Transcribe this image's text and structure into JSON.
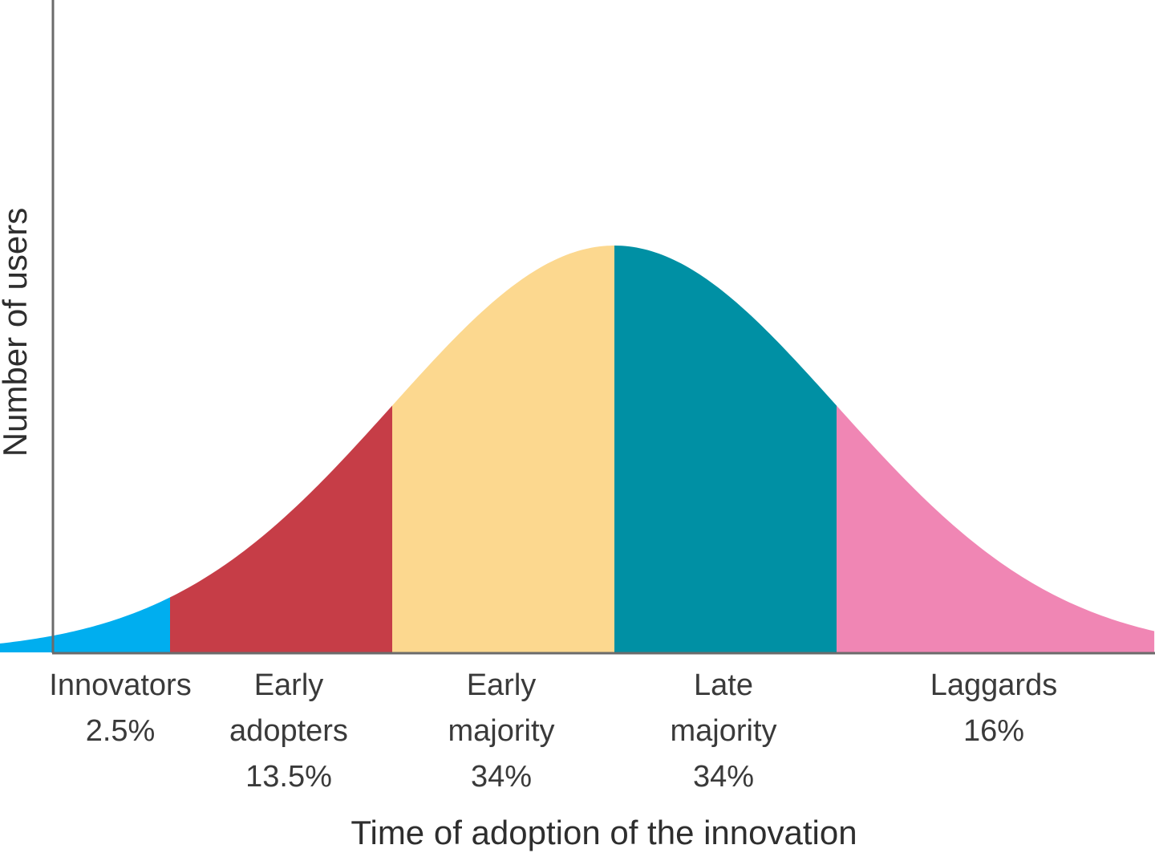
{
  "chart_data": {
    "type": "area",
    "title": "",
    "xlabel": "Time of adoption of the innovation",
    "ylabel": "Number of users",
    "distribution": "normal",
    "x_range_sd": [
      -2.9,
      2.43
    ],
    "grid": false,
    "legend": "none",
    "segments": [
      {
        "name": "Innovators",
        "percent": "2.5%",
        "value": 2.5,
        "from_sd": -2.9,
        "to_sd": -2.0,
        "color": "#00AEEF"
      },
      {
        "name": "Early adopters",
        "percent": "13.5%",
        "value": 13.5,
        "from_sd": -2.0,
        "to_sd": -1.0,
        "color": "#C63D47"
      },
      {
        "name": "Early majority",
        "percent": "34%",
        "value": 34,
        "from_sd": -1.0,
        "to_sd": 0.0,
        "color": "#FCD88F"
      },
      {
        "name": "Late majority",
        "percent": "34%",
        "value": 34,
        "from_sd": 0.0,
        "to_sd": 1.0,
        "color": "#0090A4"
      },
      {
        "name": "Laggards",
        "percent": "16%",
        "value": 16,
        "from_sd": 1.0,
        "to_sd": 2.43,
        "color": "#F086B4"
      }
    ],
    "labels": [
      {
        "lines": [
          "Innovators",
          "2.5%"
        ]
      },
      {
        "lines": [
          "Early",
          "adopters",
          "13.5%"
        ]
      },
      {
        "lines": [
          "Early",
          "majority",
          "34%"
        ]
      },
      {
        "lines": [
          "Late",
          "majority",
          "34%"
        ]
      },
      {
        "lines": [
          "Laggards",
          "16%"
        ]
      }
    ]
  }
}
